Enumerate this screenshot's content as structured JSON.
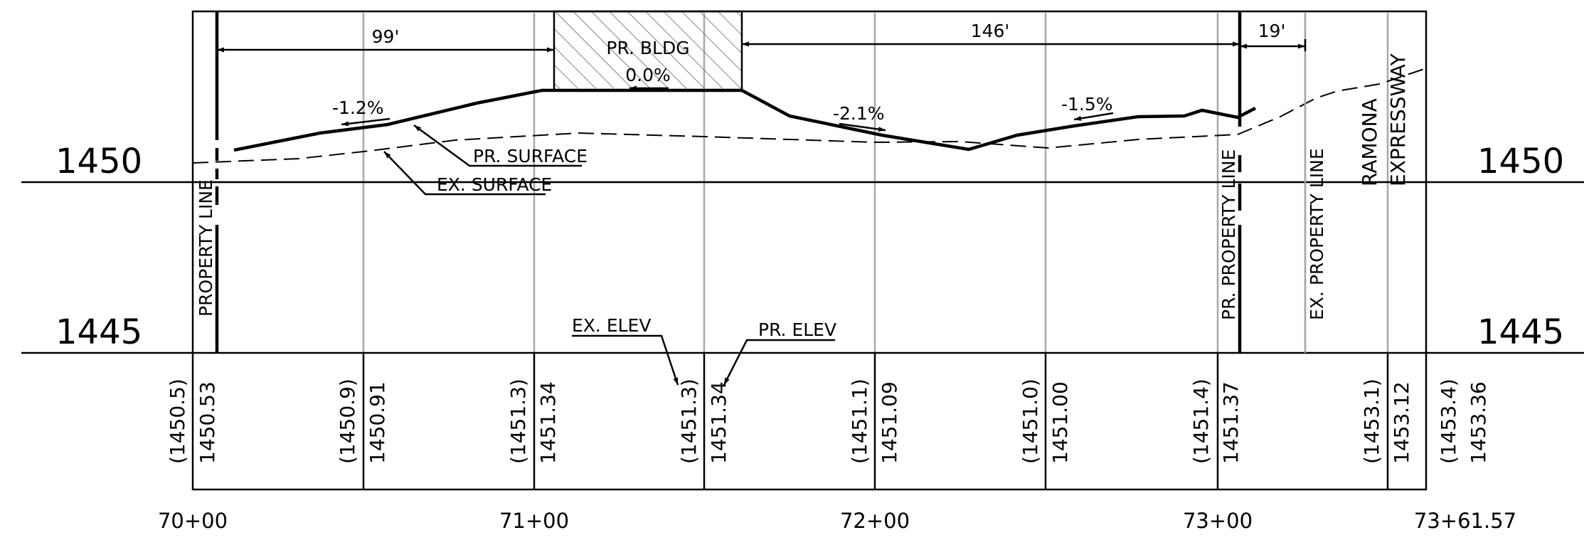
{
  "elevation_labels": {
    "upper": "1450",
    "lower": "1445"
  },
  "stations": [
    "70+00",
    "71+00",
    "72+00",
    "73+00",
    "73+61.57"
  ],
  "elevation_rows": [
    {
      "existing": "(1450.5)",
      "proposed": "1450.53"
    },
    {
      "existing": "(1450.9)",
      "proposed": "1450.91"
    },
    {
      "existing": "(1451.3)",
      "proposed": "1451.34"
    },
    {
      "existing": "(1451.3)",
      "proposed": "1451.34"
    },
    {
      "existing": "(1451.1)",
      "proposed": "1451.09"
    },
    {
      "existing": "(1451.0)",
      "proposed": "1451.00"
    },
    {
      "existing": "(1451.4)",
      "proposed": "1451.37"
    },
    {
      "existing": "(1453.1)",
      "proposed": "1453.12"
    },
    {
      "existing": "(1453.4)",
      "proposed": "1453.36"
    }
  ],
  "dimensions": {
    "left": "99'",
    "middle": "146'",
    "right": "19'"
  },
  "building": {
    "name": "PR. BLDG",
    "slope": "0.0%"
  },
  "slopes": {
    "s1": "-1.2%",
    "s2": "-2.1%",
    "s3": "-1.5%"
  },
  "labels": {
    "pr_surface": "PR. SURFACE",
    "ex_surface": "EX. SURFACE",
    "property_line": "PROPERTY LINE",
    "pr_property_line": "PR. PROPERTY LINE",
    "ex_property_line": "EX. PROPERTY LINE",
    "road_line1": "RAMONA",
    "road_line2": "EXPRESSWAY",
    "ex_elev": "EX. ELEV",
    "pr_elev": "PR. ELEV"
  }
}
